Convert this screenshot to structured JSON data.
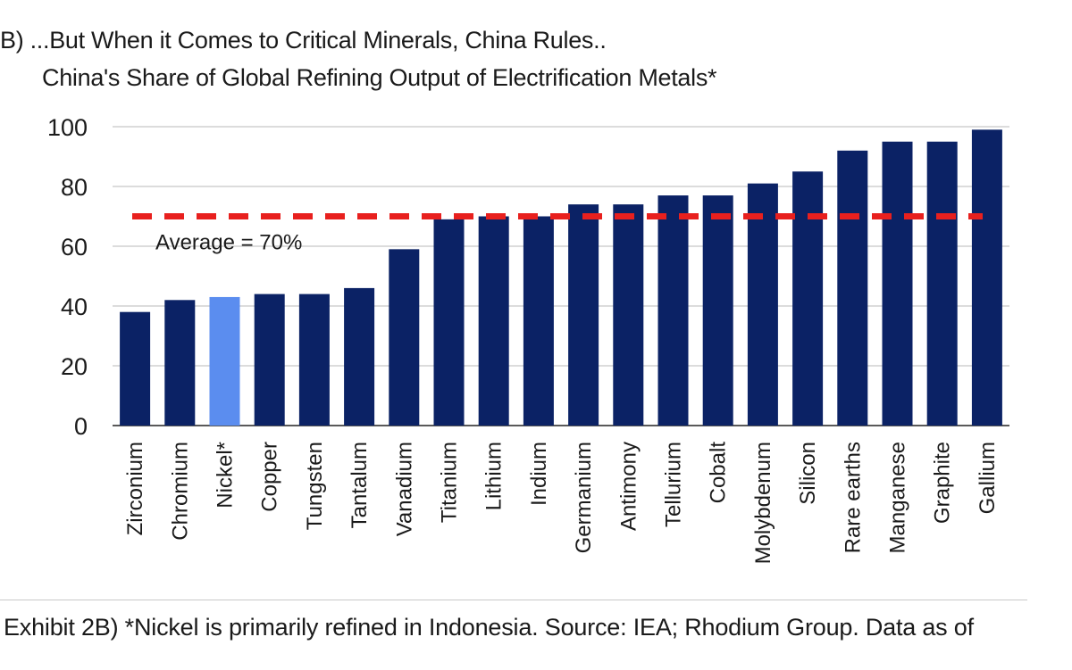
{
  "header": {
    "title": "B) ...But When it Comes to Critical Minerals, China Rules..",
    "subtitle": "China's Share of Global Refining Output of Electrification Metals*"
  },
  "chart_data": {
    "type": "bar",
    "categories": [
      "Zirconium",
      "Chromium",
      "Nickel*",
      "Copper",
      "Tungsten",
      "Tantalum",
      "Vanadium",
      "Titanium",
      "Lithium",
      "Indium",
      "Germanium",
      "Antimony",
      "Tellurium",
      "Cobalt",
      "Molybdenum",
      "Silicon",
      "Rare earths",
      "Manganese",
      "Graphite",
      "Gallium"
    ],
    "values": [
      38,
      42,
      43,
      44,
      44,
      46,
      59,
      69,
      70,
      70,
      74,
      74,
      77,
      77,
      81,
      85,
      92,
      95,
      95,
      99
    ],
    "highlight_category": "Nickel*",
    "colors": {
      "bar": "#0b2265",
      "highlight": "#5b8def",
      "average_line": "#e8201e",
      "grid": "#d0d0d0"
    },
    "ylim": [
      0,
      100
    ],
    "yticks": [
      0,
      20,
      40,
      60,
      80,
      100
    ],
    "grid": true,
    "average": {
      "value": 70,
      "label": "Average = 70%"
    }
  },
  "footer": {
    "note": "Exhibit 2B) *Nickel is primarily refined in Indonesia. Source: IEA; Rhodium Group. Data as of"
  }
}
